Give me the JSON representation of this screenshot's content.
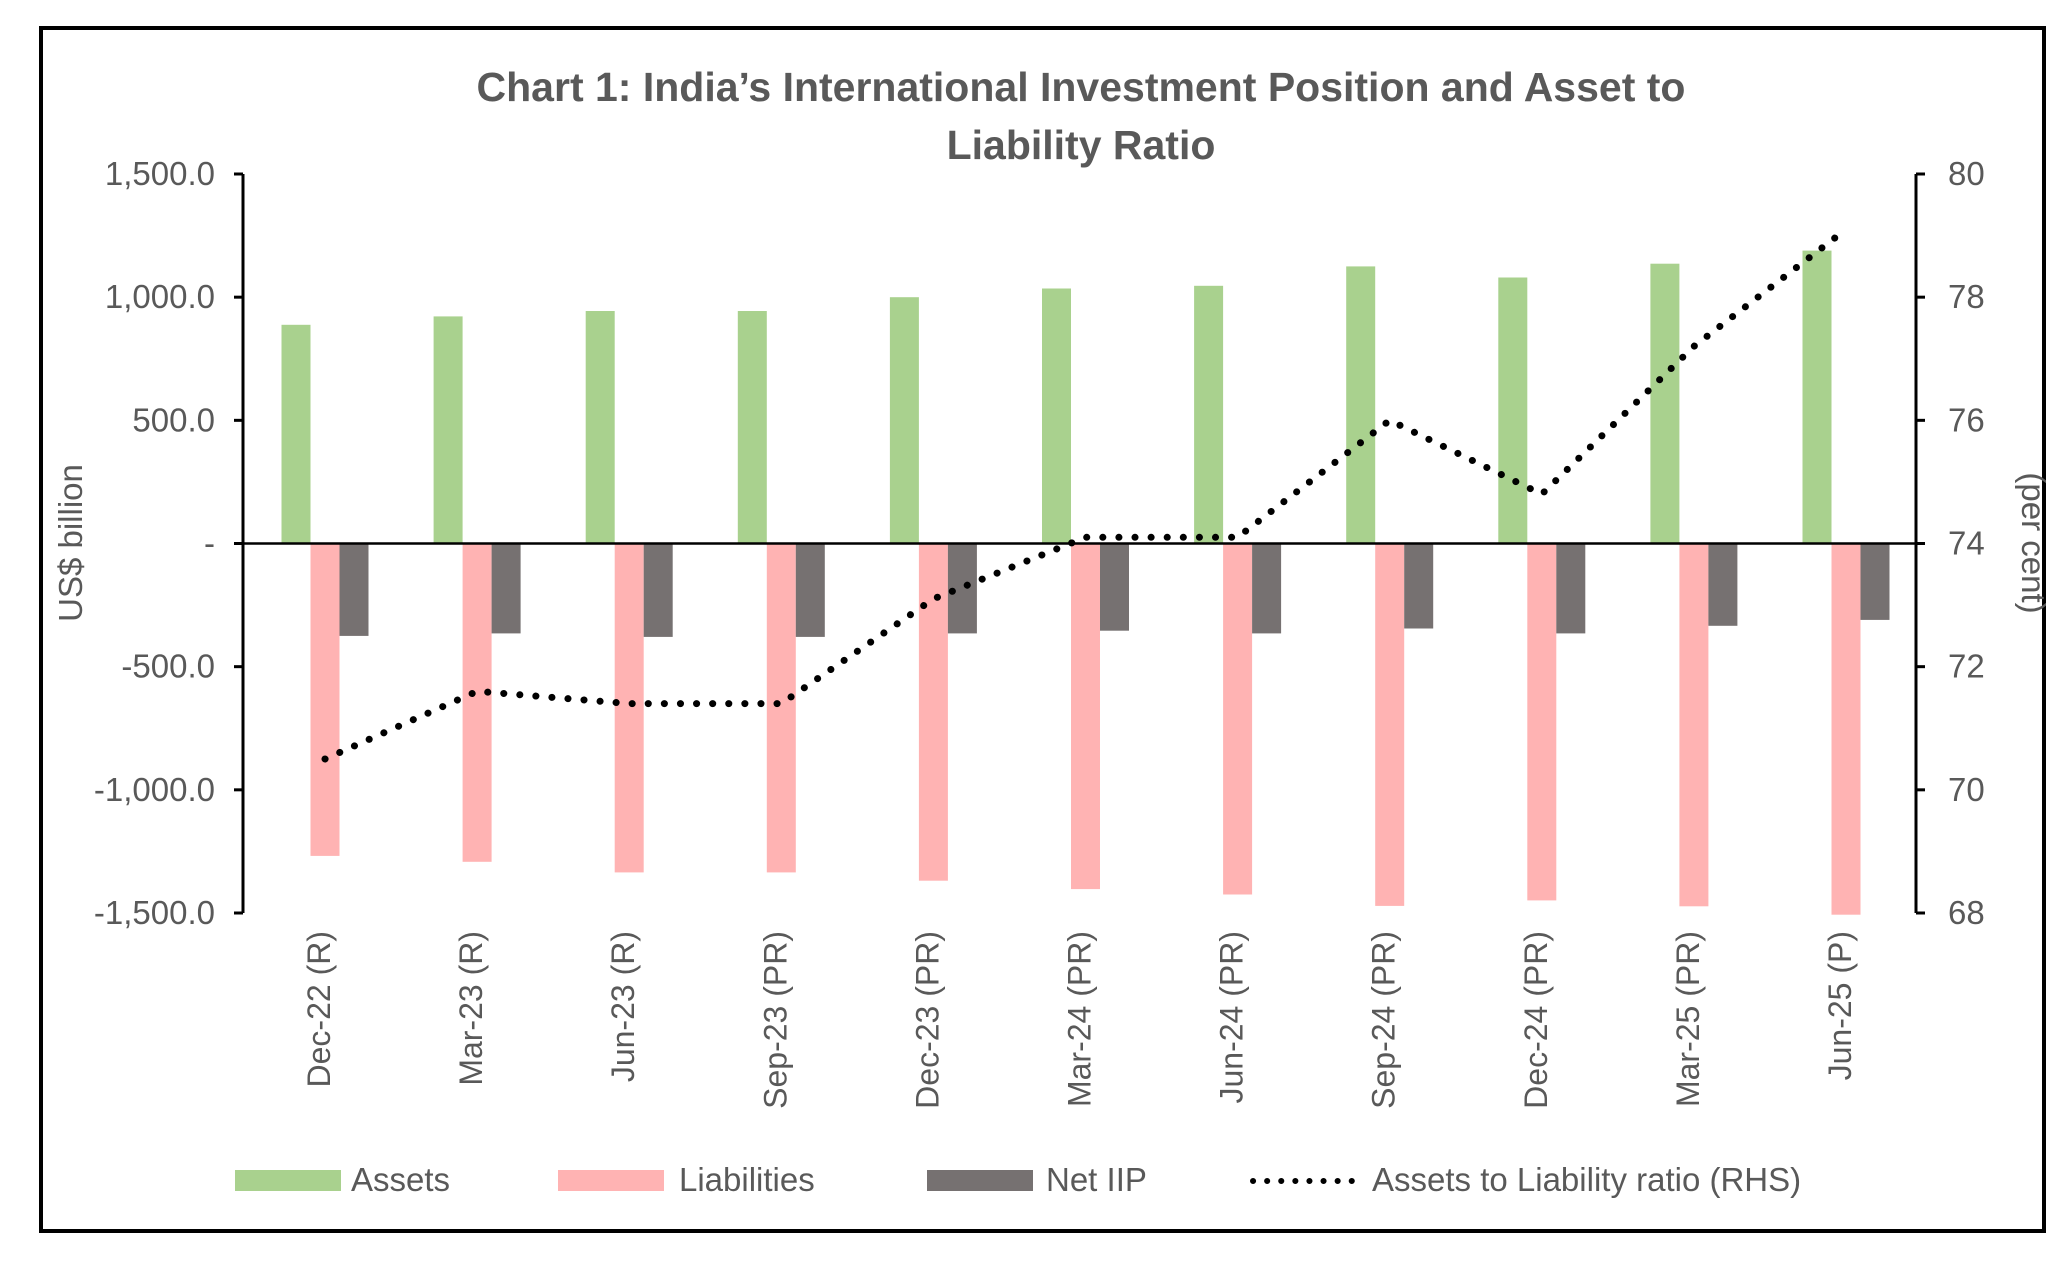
{
  "chart_data": {
    "type": "bar",
    "title": "Chart 1: India’s International Investment Position and Asset to Liability Ratio",
    "title_lines": [
      "Chart 1: India’s International Investment Position and Asset to",
      "Liability Ratio"
    ],
    "categories": [
      "Dec-22 (R)",
      "Mar-23 (R)",
      "Jun-23 (R)",
      "Sep-23 (PR)",
      "Dec-23 (PR)",
      "Mar-24 (PR)",
      "Jun-24 (PR)",
      "Sep-24 (PR)",
      "Dec-24 (PR)",
      "Mar-25 (PR)",
      "Jun-25 (P)"
    ],
    "series": [
      {
        "name": "Assets",
        "type": "bar",
        "axis": "left",
        "color": "#A9D18E",
        "values": [
          888,
          922,
          944,
          944,
          1000,
          1035,
          1046,
          1125,
          1080,
          1136,
          1189
        ]
      },
      {
        "name": "Liabilities",
        "type": "bar",
        "axis": "left",
        "color": "#FFB3B3",
        "values": [
          -1268,
          -1292,
          -1335,
          -1335,
          -1369,
          -1403,
          -1425,
          -1471,
          -1449,
          -1473,
          -1507
        ]
      },
      {
        "name": "Net IIP",
        "type": "bar",
        "axis": "left",
        "color": "#767171",
        "values": [
          -375,
          -365,
          -379,
          -379,
          -365,
          -354,
          -365,
          -345,
          -365,
          -334,
          -310
        ]
      },
      {
        "name": "Assets to Liability ratio (RHS)",
        "type": "line",
        "style": "dotted",
        "axis": "right",
        "color": "#000000",
        "values": [
          70.5,
          71.6,
          71.4,
          71.4,
          73.1,
          74.1,
          74.1,
          76.0,
          74.8,
          77.2,
          79.1
        ]
      }
    ],
    "ylabel": "US$ billion",
    "ylabel_right": "(per cent)",
    "ylim": [
      -1500,
      1500
    ],
    "ylim_right": [
      68,
      80
    ],
    "yticks": [
      {
        "value": 1500,
        "label": "1,500.0"
      },
      {
        "value": 1000,
        "label": "1,000.0"
      },
      {
        "value": 500,
        "label": "500.0"
      },
      {
        "value": 0,
        "label": "-"
      },
      {
        "value": -500,
        "label": "-500.0"
      },
      {
        "value": -1000,
        "label": "-1,000.0"
      },
      {
        "value": -1500,
        "label": "-1,500.0"
      }
    ],
    "yticks_right": [
      {
        "value": 80,
        "label": "80"
      },
      {
        "value": 78,
        "label": "78"
      },
      {
        "value": 76,
        "label": "76"
      },
      {
        "value": 74,
        "label": "74"
      },
      {
        "value": 72,
        "label": "72"
      },
      {
        "value": 70,
        "label": "70"
      },
      {
        "value": 68,
        "label": "68"
      }
    ],
    "grid": false,
    "legend_position": "bottom"
  }
}
